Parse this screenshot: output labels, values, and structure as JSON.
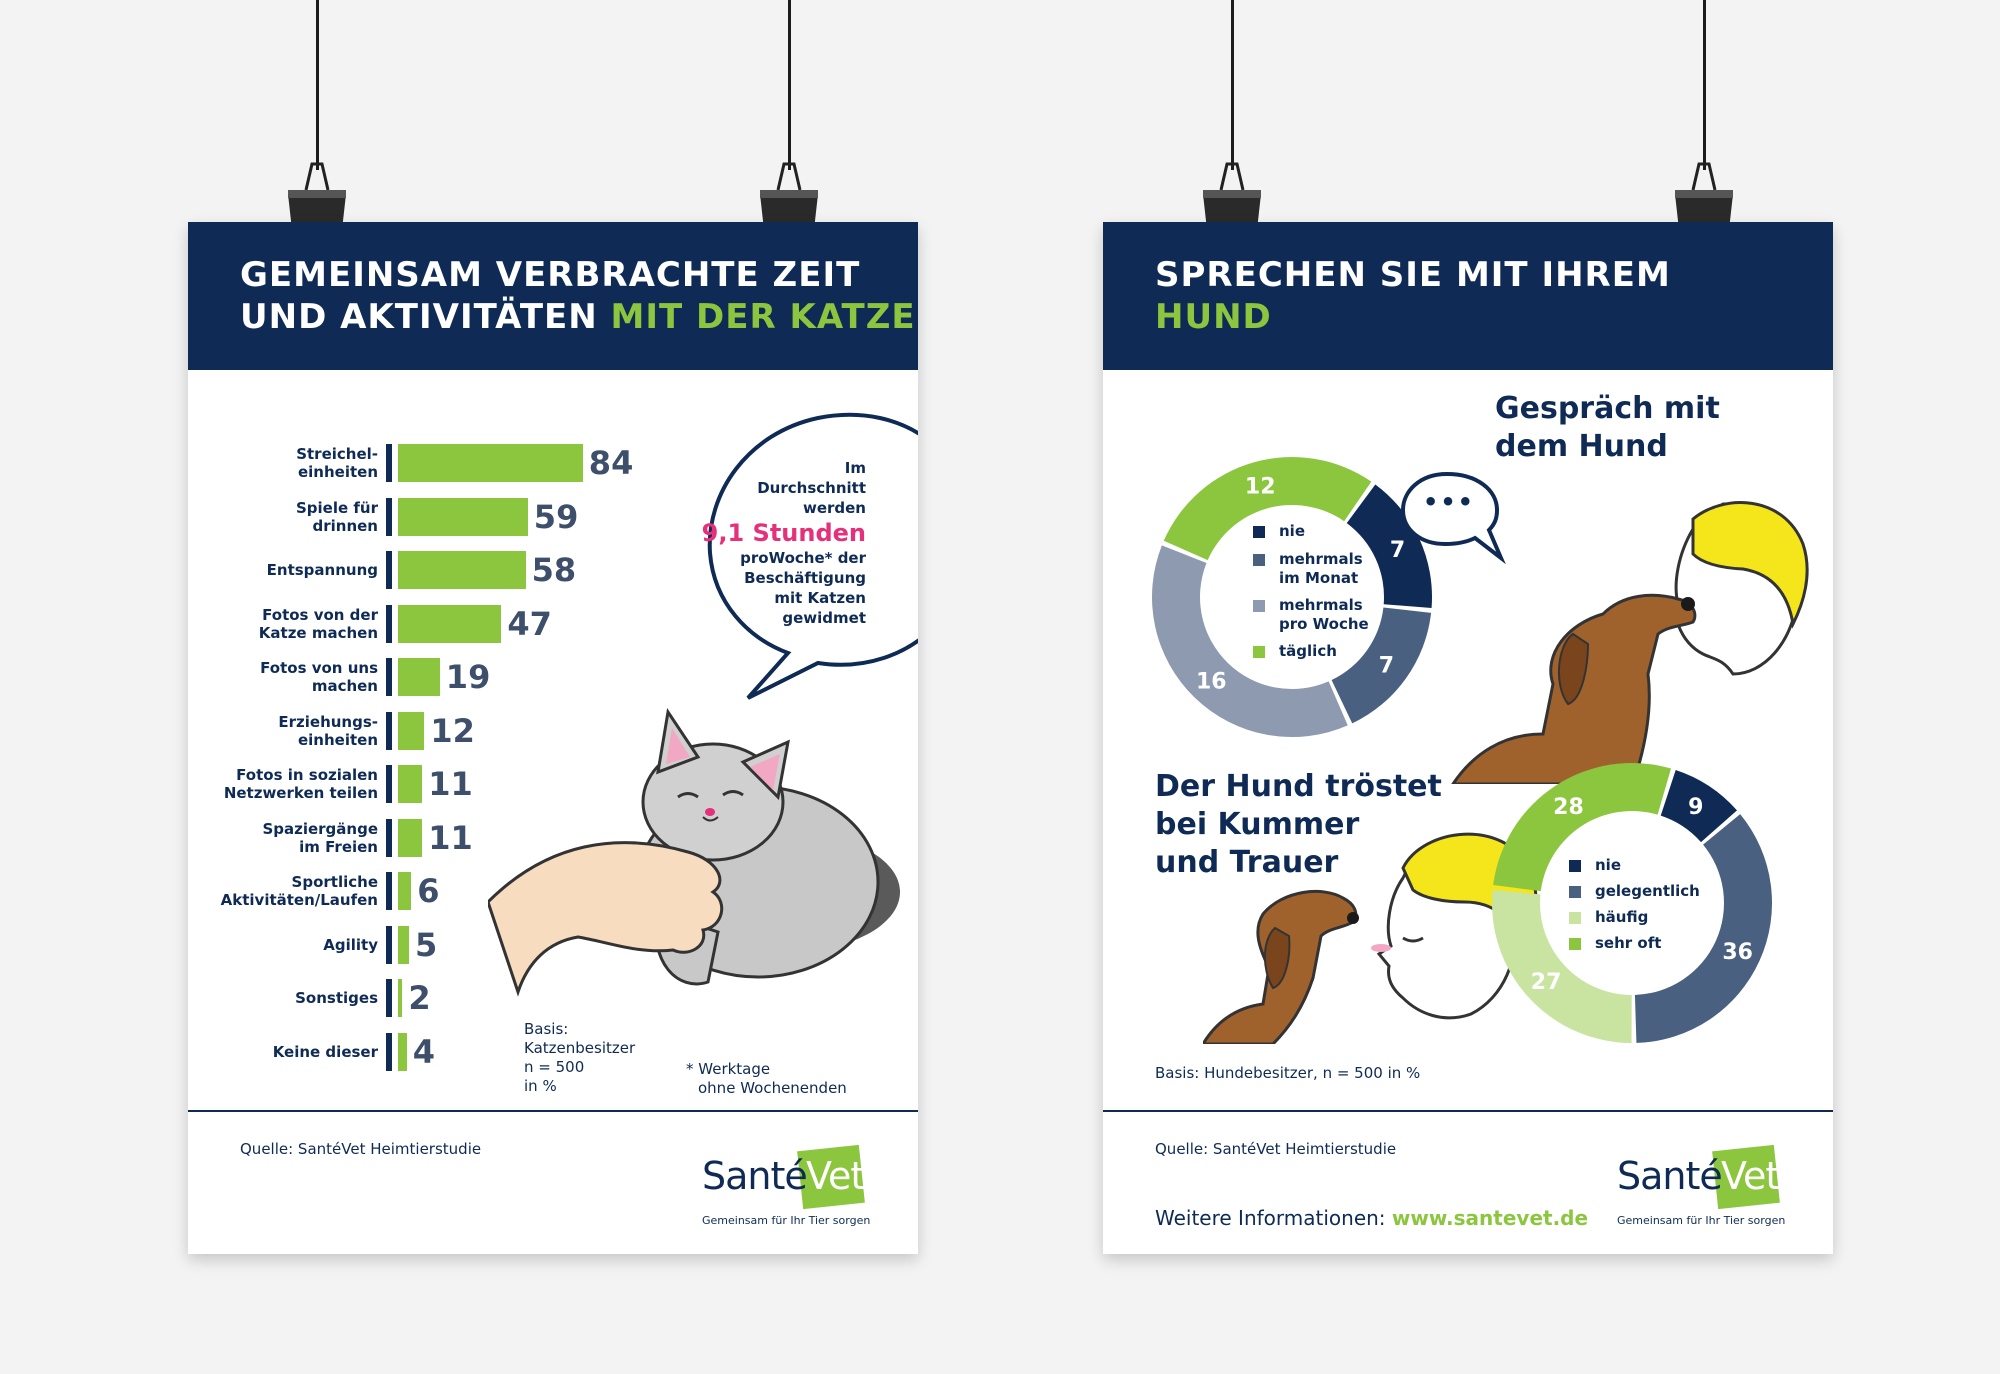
{
  "left_poster": {
    "title_line1": "GEMEINSAM VERBRACHTE ZEIT",
    "title_line2_a": "UND AKTIVITÄTEN",
    "title_line2_b": "MIT DER KATZE",
    "bubble": {
      "line1": "Im",
      "line2": "Durchschnitt",
      "line3": "werden",
      "highlight": "9,1 Stunden",
      "line4": "proWoche* der",
      "line5": "Beschäftigung",
      "line6": "mit Katzen",
      "line7": "gewidmet"
    },
    "basis": [
      "Basis:",
      "Katzenbesitzer",
      "n = 500",
      "in %"
    ],
    "footnote": [
      "* Werktage",
      "ohne Wochenenden"
    ],
    "source": "Quelle: SantéVet Heimtierstudie"
  },
  "right_poster": {
    "title_line1": "SPRECHEN SIE MIT IHREM",
    "title_line2": "HUND",
    "section1_title": [
      "Gespräch mit",
      "dem Hund"
    ],
    "section2_title": [
      "Der Hund tröstet",
      "bei Kummer",
      "und Trauer"
    ],
    "basis": "Basis: Hundebesitzer, n = 500 in %",
    "source": "Quelle: SantéVet Heimtierstudie",
    "more_info_label": "Weitere Informationen:",
    "more_info_link": "www.santevet.de",
    "speech_dots": "•••"
  },
  "logo": {
    "name_a": "Santé",
    "name_b": "Vet",
    "tagline": "Gemeinsam für Ihr Tier sorgen"
  },
  "colors": {
    "navy": "#0f2b55",
    "green": "#8cc63f",
    "slate": "#4a6080",
    "grey_blue": "#8e9aaf",
    "light_green": "#c9e3a1",
    "pink": "#e6307a"
  },
  "chart_data": [
    {
      "type": "bar",
      "orientation": "horizontal",
      "categories": [
        [
          "Streichel-",
          "einheiten"
        ],
        [
          "Spiele für",
          "drinnen"
        ],
        [
          "Entspannung"
        ],
        [
          "Fotos von der",
          "Katze machen"
        ],
        [
          "Fotos von uns",
          "machen"
        ],
        [
          "Erziehungs-",
          "einheiten"
        ],
        [
          "Fotos in sozialen",
          "Netzwerken teilen"
        ],
        [
          "Spaziergänge",
          "im Freien"
        ],
        [
          "Sportliche",
          "Aktivitäten/Laufen"
        ],
        [
          "Agility"
        ],
        [
          "Sonstiges"
        ],
        [
          "Keine dieser"
        ]
      ],
      "values": [
        84,
        59,
        58,
        47,
        19,
        12,
        11,
        11,
        6,
        5,
        2,
        4
      ],
      "value_labels": [
        "84",
        "59",
        "58",
        "47",
        "19",
        "12",
        "11",
        "11",
        "6",
        "5",
        "2",
        "4"
      ]
    },
    {
      "type": "pie",
      "variant": "donut",
      "legend": [
        "nie",
        [
          "mehrmals",
          "im Monat"
        ],
        [
          "mehrmals",
          "pro Woche"
        ],
        "täglich"
      ],
      "values": [
        7,
        7,
        16,
        12
      ],
      "value_labels": [
        "7",
        "7",
        "16",
        "12"
      ],
      "colors": [
        "#0f2b55",
        "#4a6080",
        "#8e9aaf",
        "#8cc63f"
      ]
    },
    {
      "type": "pie",
      "variant": "donut",
      "legend": [
        "nie",
        "gelegentlich",
        "häufig",
        "sehr oft"
      ],
      "values": [
        9,
        36,
        27,
        28
      ],
      "value_labels": [
        "9",
        "36",
        "27",
        "28"
      ],
      "colors": [
        "#0f2b55",
        "#4a6080",
        "#c9e3a1",
        "#8cc63f"
      ]
    }
  ]
}
